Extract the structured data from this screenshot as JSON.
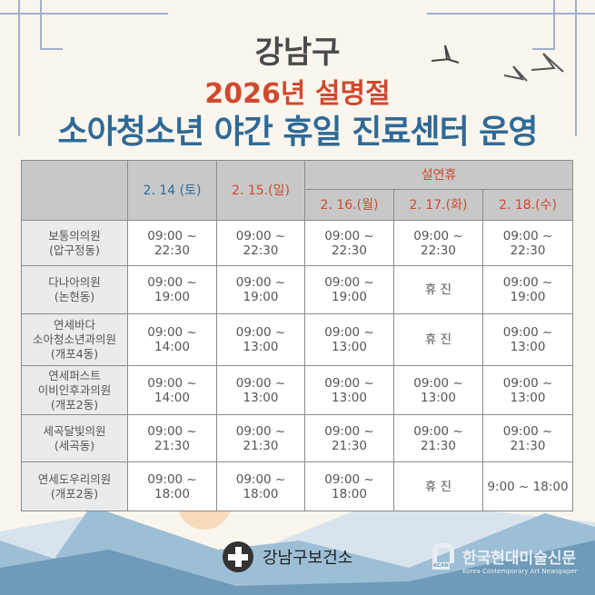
{
  "title": {
    "line1": "강남구",
    "line2": "2026년 설명절",
    "line3": "소아청소년 야간 휴일 진료센터 운영"
  },
  "table": {
    "group_header": "설연휴",
    "dates": [
      {
        "label": "2. 14 (토)",
        "color": "#2f6a96"
      },
      {
        "label": "2. 15.(일)",
        "color": "#d0492e"
      },
      {
        "label": "2. 16.(월)",
        "color": "#d0492e"
      },
      {
        "label": "2. 17.(화)",
        "color": "#d0492e"
      },
      {
        "label": "2. 18.(수)",
        "color": "#d0492e"
      }
    ],
    "rows": [
      {
        "name": "보통의의원\n(압구정동)",
        "cells": [
          "09:00 ~\n22:30",
          "09:00 ~\n22:30",
          "09:00 ~\n22:30",
          "09:00 ~\n22:30",
          "09:00 ~\n22:30"
        ]
      },
      {
        "name": "다나아의원\n(논현동)",
        "cells": [
          "09:00 ~\n19:00",
          "09:00 ~\n19:00",
          "09:00 ~\n19:00",
          "휴 진",
          "09:00 ~\n19:00"
        ]
      },
      {
        "name": "연세바다\n소아청소년과의원\n(개포4동)",
        "cells": [
          "09:00 ~\n14:00",
          "09:00 ~\n13:00",
          "09:00 ~\n13:00",
          "휴 진",
          "09:00 ~\n13:00"
        ]
      },
      {
        "name": "연세퍼스트\n이비인후과의원\n(개포2동)",
        "cells": [
          "09:00 ~\n14:00",
          "09:00 ~\n13:00",
          "09:00 ~\n13:00",
          "09:00 ~\n13:00",
          "09:00 ~\n13:00"
        ]
      },
      {
        "name": "세곡달빛의원\n(세곡동)",
        "cells": [
          "09:00 ~\n21:30",
          "09:00 ~\n21:30",
          "09:00 ~\n21:30",
          "09:00 ~\n21:30",
          "09:00 ~\n21:30"
        ]
      },
      {
        "name": "연세도우리의원\n(개포2동)",
        "cells": [
          "09:00 ~\n18:00",
          "09:00 ~\n18:00",
          "09:00 ~\n18:00",
          "휴 진",
          "9:00 ~ 18:00"
        ]
      }
    ]
  },
  "footer": {
    "org": "강남구보건소",
    "org_icon": "medical-cross-icon",
    "news_ko": "한국현대미술신문",
    "news_en": "Korea Contemporary Art Newspaper",
    "news_badge": "KCAN"
  }
}
